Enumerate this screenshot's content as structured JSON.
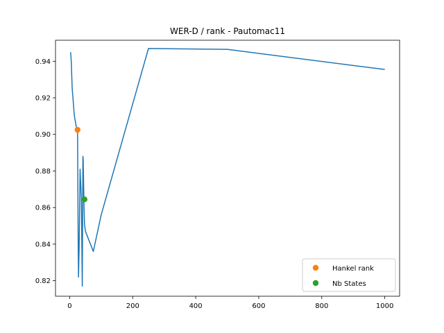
{
  "chart_data": {
    "type": "line",
    "title": "WER-D / rank - Pautomac11",
    "xlabel": "",
    "ylabel": "",
    "xlim": [
      -45,
      1047
    ],
    "ylim": [
      0.8115,
      0.9515
    ],
    "xticks": [
      0,
      200,
      400,
      600,
      800,
      1000
    ],
    "xtick_labels": [
      "0",
      "200",
      "400",
      "600",
      "800",
      "1000"
    ],
    "yticks": [
      0.82,
      0.84,
      0.86,
      0.88,
      0.9,
      0.92,
      0.94
    ],
    "ytick_labels": [
      "0.82",
      "0.84",
      "0.86",
      "0.88",
      "0.90",
      "0.92",
      "0.94"
    ],
    "grid": false,
    "legend_position": "lower-right",
    "series": [
      {
        "color": "#1f77b4",
        "x": [
          3,
          5,
          8,
          10,
          13,
          15,
          18,
          20,
          23,
          25,
          27,
          28,
          30,
          33,
          35,
          37,
          40,
          42,
          43,
          45,
          47,
          50,
          75,
          100,
          250,
          500,
          1000
        ],
        "y": [
          0.945,
          0.94,
          0.925,
          0.921,
          0.914,
          0.91,
          0.907,
          0.905,
          0.903,
          0.903,
          0.84,
          0.822,
          0.838,
          0.881,
          0.873,
          0.865,
          0.817,
          0.888,
          0.886,
          0.865,
          0.851,
          0.847,
          0.836,
          0.856,
          0.947,
          0.9465,
          0.9355
        ]
      }
    ],
    "markers": [
      {
        "name": "Hankel rank",
        "x": 25,
        "y": 0.9025,
        "color": "#ff7f0e"
      },
      {
        "name": "Nb States",
        "x": 47,
        "y": 0.8645,
        "color": "#2ca02c"
      }
    ]
  }
}
